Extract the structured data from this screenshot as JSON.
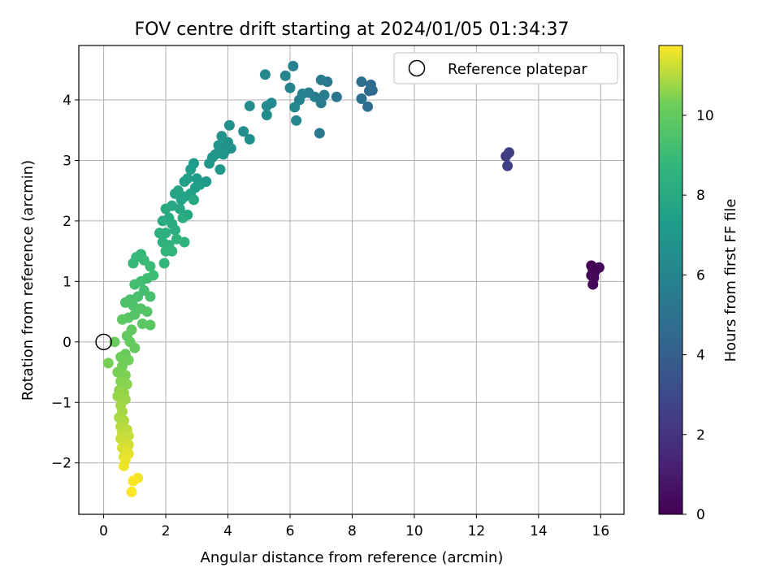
{
  "chart_data": {
    "type": "scatter",
    "title": "FOV centre drift starting at 2024/01/05 01:34:37",
    "xlabel": "Angular distance from reference (arcmin)",
    "ylabel": "Rotation from reference (arcmin)",
    "xlim": [
      -0.8,
      16.75
    ],
    "ylim": [
      -2.85,
      4.9
    ],
    "xticks": [
      0,
      2,
      4,
      6,
      8,
      10,
      12,
      14,
      16
    ],
    "yticks": [
      -2,
      -1,
      0,
      1,
      2,
      3,
      4
    ],
    "grid": true,
    "legend": {
      "location": "top-right",
      "entries": [
        "Reference platepar"
      ]
    },
    "colorbar": {
      "label": "Hours from first FF file",
      "range": [
        0,
        11.75
      ],
      "ticks": [
        0,
        2,
        4,
        6,
        8,
        10
      ],
      "colormap": "viridis"
    },
    "reference_point": {
      "x": 0,
      "y": 0,
      "label": "Reference platepar"
    },
    "points": [
      [
        15.7,
        1.26,
        0.0
      ],
      [
        15.75,
        1.2,
        0.05
      ],
      [
        15.8,
        1.15,
        0.1
      ],
      [
        15.95,
        1.23,
        0.15
      ],
      [
        15.7,
        1.1,
        0.2
      ],
      [
        15.78,
        1.06,
        0.25
      ],
      [
        15.75,
        0.95,
        0.3
      ],
      [
        12.95,
        3.07,
        2.4
      ],
      [
        13.05,
        3.13,
        2.5
      ],
      [
        13.0,
        2.91,
        2.6
      ],
      [
        8.6,
        4.25,
        4.5
      ],
      [
        8.55,
        4.15,
        4.6
      ],
      [
        8.65,
        4.16,
        4.65
      ],
      [
        8.5,
        3.89,
        4.7
      ],
      [
        8.3,
        4.3,
        4.8
      ],
      [
        8.3,
        4.02,
        4.9
      ],
      [
        7.5,
        4.05,
        5.2
      ],
      [
        7.2,
        4.3,
        5.3
      ],
      [
        7.0,
        4.33,
        5.4
      ],
      [
        6.95,
        3.45,
        5.45
      ],
      [
        7.0,
        3.95,
        5.5
      ],
      [
        7.1,
        4.08,
        5.6
      ],
      [
        6.8,
        4.05,
        5.7
      ],
      [
        6.6,
        4.12,
        5.75
      ],
      [
        6.4,
        4.1,
        5.8
      ],
      [
        6.3,
        4.0,
        5.85
      ],
      [
        6.1,
        4.56,
        5.9
      ],
      [
        6.0,
        4.2,
        6.0
      ],
      [
        5.85,
        4.4,
        6.05
      ],
      [
        6.2,
        3.66,
        6.1
      ],
      [
        6.15,
        3.88,
        6.15
      ],
      [
        5.2,
        4.42,
        6.2
      ],
      [
        5.4,
        3.95,
        6.25
      ],
      [
        5.25,
        3.9,
        6.3
      ],
      [
        5.25,
        3.75,
        6.35
      ],
      [
        4.7,
        3.9,
        6.4
      ],
      [
        4.5,
        3.48,
        6.5
      ],
      [
        4.7,
        3.35,
        6.55
      ],
      [
        4.05,
        3.58,
        6.6
      ],
      [
        4.0,
        3.3,
        6.65
      ],
      [
        4.1,
        3.2,
        6.7
      ],
      [
        3.9,
        3.15,
        6.75
      ],
      [
        3.8,
        3.4,
        6.8
      ],
      [
        3.7,
        3.25,
        6.85
      ],
      [
        3.85,
        3.1,
        6.9
      ],
      [
        3.5,
        3.05,
        6.95
      ],
      [
        3.6,
        3.1,
        7.0
      ],
      [
        3.75,
        2.85,
        7.05
      ],
      [
        3.4,
        2.95,
        7.1
      ],
      [
        3.3,
        2.65,
        7.15
      ],
      [
        2.9,
        2.95,
        7.2
      ],
      [
        3.0,
        2.7,
        7.25
      ],
      [
        3.1,
        2.6,
        7.3
      ],
      [
        2.8,
        2.85,
        7.35
      ],
      [
        2.95,
        2.55,
        7.4
      ],
      [
        2.7,
        2.7,
        7.45
      ],
      [
        2.6,
        2.65,
        7.5
      ],
      [
        2.8,
        2.45,
        7.55
      ],
      [
        2.6,
        2.4,
        7.6
      ],
      [
        2.5,
        2.35,
        7.65
      ],
      [
        2.4,
        2.5,
        7.7
      ],
      [
        2.3,
        2.45,
        7.75
      ],
      [
        2.2,
        2.25,
        7.8
      ],
      [
        2.45,
        2.2,
        7.85
      ],
      [
        2.7,
        2.1,
        7.9
      ],
      [
        2.9,
        2.35,
        7.95
      ],
      [
        2.1,
        2.05,
        8.0
      ],
      [
        2.0,
        2.2,
        8.05
      ],
      [
        1.9,
        2.0,
        8.1
      ],
      [
        2.2,
        1.95,
        8.15
      ],
      [
        2.55,
        2.05,
        8.2
      ],
      [
        2.3,
        1.85,
        8.25
      ],
      [
        2.0,
        1.8,
        8.3
      ],
      [
        1.8,
        1.8,
        8.35
      ],
      [
        1.9,
        1.65,
        8.4
      ],
      [
        2.1,
        1.6,
        8.45
      ],
      [
        2.35,
        1.7,
        8.5
      ],
      [
        2.6,
        1.65,
        8.55
      ],
      [
        2.2,
        1.5,
        8.6
      ],
      [
        2.0,
        1.5,
        8.65
      ],
      [
        1.95,
        1.3,
        8.7
      ],
      [
        1.2,
        1.45,
        8.8
      ],
      [
        1.05,
        1.4,
        8.85
      ],
      [
        0.95,
        1.3,
        8.9
      ],
      [
        1.3,
        1.35,
        8.95
      ],
      [
        1.5,
        1.25,
        9.0
      ],
      [
        1.6,
        1.1,
        9.05
      ],
      [
        1.4,
        1.05,
        9.1
      ],
      [
        1.2,
        1.0,
        9.15
      ],
      [
        1.0,
        0.95,
        9.2
      ],
      [
        1.3,
        0.85,
        9.25
      ],
      [
        1.5,
        0.75,
        9.3
      ],
      [
        1.1,
        0.75,
        9.35
      ],
      [
        0.85,
        0.7,
        9.4
      ],
      [
        0.7,
        0.65,
        9.45
      ],
      [
        0.95,
        0.6,
        9.5
      ],
      [
        1.2,
        0.55,
        9.55
      ],
      [
        1.0,
        0.45,
        9.6
      ],
      [
        1.4,
        0.5,
        9.65
      ],
      [
        0.8,
        0.4,
        9.7
      ],
      [
        1.5,
        0.28,
        9.75
      ],
      [
        1.25,
        0.3,
        9.8
      ],
      [
        0.6,
        0.37,
        9.85
      ],
      [
        0.9,
        0.2,
        9.9
      ],
      [
        0.75,
        0.1,
        9.95
      ],
      [
        0.85,
        0.0,
        10.0
      ],
      [
        1.0,
        -0.1,
        10.05
      ],
      [
        0.7,
        -0.2,
        10.1
      ],
      [
        0.35,
        0.0,
        10.15
      ],
      [
        0.55,
        -0.25,
        10.2
      ],
      [
        0.8,
        -0.3,
        10.25
      ],
      [
        0.6,
        -0.4,
        10.3
      ],
      [
        0.15,
        -0.35,
        10.35
      ],
      [
        0.45,
        -0.5,
        10.4
      ],
      [
        0.7,
        -0.55,
        10.45
      ],
      [
        0.55,
        -0.65,
        10.5
      ],
      [
        0.75,
        -0.7,
        10.55
      ],
      [
        0.5,
        -0.8,
        10.6
      ],
      [
        0.65,
        -0.85,
        10.65
      ],
      [
        0.45,
        -0.9,
        10.7
      ],
      [
        0.7,
        -0.95,
        10.75
      ],
      [
        0.55,
        -1.05,
        10.8
      ],
      [
        0.6,
        -1.15,
        10.85
      ],
      [
        0.5,
        -1.25,
        10.9
      ],
      [
        0.65,
        -1.3,
        10.95
      ],
      [
        0.55,
        -1.4,
        11.0
      ],
      [
        0.75,
        -1.45,
        11.05
      ],
      [
        0.6,
        -1.5,
        11.1
      ],
      [
        0.8,
        -1.55,
        11.15
      ],
      [
        0.55,
        -1.6,
        11.2
      ],
      [
        0.7,
        -1.65,
        11.25
      ],
      [
        0.8,
        -1.7,
        11.3
      ],
      [
        0.6,
        -1.75,
        11.35
      ],
      [
        0.75,
        -1.8,
        11.4
      ],
      [
        0.65,
        -1.9,
        11.45
      ],
      [
        0.8,
        -1.85,
        11.5
      ],
      [
        0.7,
        -1.95,
        11.55
      ],
      [
        0.65,
        -2.05,
        11.6
      ],
      [
        1.1,
        -2.25,
        11.65
      ],
      [
        0.95,
        -2.3,
        11.7
      ],
      [
        0.9,
        -2.48,
        11.75
      ]
    ]
  }
}
